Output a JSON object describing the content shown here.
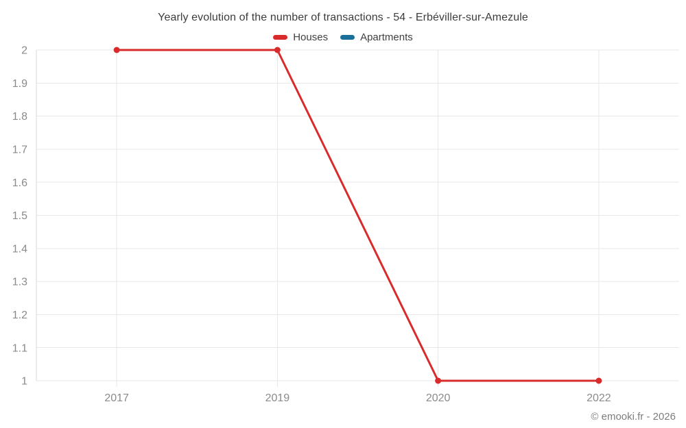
{
  "chart": {
    "title": "Yearly evolution of the number of transactions - 54 - Erbéviller-sur-Amezule"
  },
  "footer": {
    "copyright": "© emooki.fr - 2026"
  },
  "colors": {
    "houses": "#d92b2b",
    "apartments": "#1a6f9b",
    "grid": "#e7e7e7",
    "axis": "#d9d9d9",
    "tick_text": "#8a8a8a",
    "title_text": "#3c3c3c"
  },
  "chart_data": {
    "type": "line",
    "categories": [
      "2017",
      "2019",
      "2020",
      "2022"
    ],
    "series": [
      {
        "name": "Houses",
        "color": "#d92b2b",
        "values": [
          2,
          2,
          1,
          1
        ]
      },
      {
        "name": "Apartments",
        "color": "#1a6f9b",
        "values": []
      }
    ],
    "title": "Yearly evolution of the number of transactions - 54 - Erbéviller-sur-Amezule",
    "xlabel": "",
    "ylabel": "",
    "ylim": [
      1,
      2
    ],
    "yticks": [
      1,
      1.1,
      1.2,
      1.3,
      1.4,
      1.5,
      1.6,
      1.7,
      1.8,
      1.9,
      2
    ],
    "ytick_labels": [
      "1",
      "1.1",
      "1.2",
      "1.3",
      "1.4",
      "1.5",
      "1.6",
      "1.7",
      "1.8",
      "1.9",
      "2"
    ],
    "grid": true,
    "legend_position": "top"
  }
}
